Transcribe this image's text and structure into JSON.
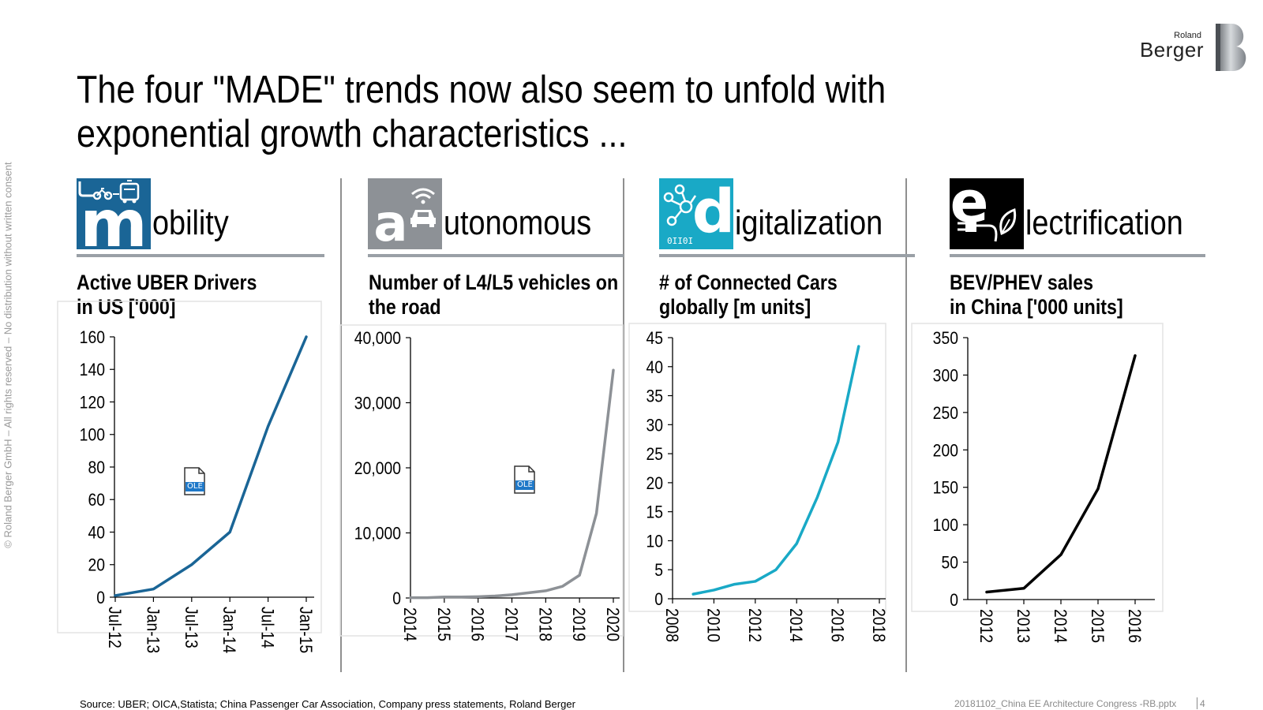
{
  "side_copyright": "© Roland Berger GmbH – All rights reserved – No distribution without written consent",
  "logo": {
    "small": "Roland",
    "big": "Berger"
  },
  "title": "The four \"MADE\" trends now also seem to unfold with exponential growth characteristics ...",
  "colors": {
    "mobility": "#1a6596",
    "autonomous": "#8d9196",
    "digitalization": "#19a9c6",
    "electrification": "#000000"
  },
  "trends": [
    {
      "letter": "m",
      "word": "obility",
      "icon": "bike-bus-icon"
    },
    {
      "letter": "a",
      "word": "utonomous",
      "icon": "wifi-car-icon"
    },
    {
      "letter": "d",
      "word": "igitalization",
      "icon": "circuit-binary-icon",
      "icon_text": "0II0I"
    },
    {
      "letter": "e",
      "word": "lectrification",
      "icon": "plug-leaf-icon"
    }
  ],
  "ole_label": "OLE",
  "chart_data": [
    {
      "type": "line",
      "title": "Active UBER Drivers in US ['000]",
      "title_lines": [
        "Active UBER Drivers",
        "in US ['000]"
      ],
      "color": "#1a6596",
      "categories": [
        "Jul-12",
        "Jan-13",
        "Jul-13",
        "Jan-14",
        "Jul-14",
        "Jan-15"
      ],
      "values": [
        1,
        5,
        20,
        40,
        105,
        160
      ],
      "ylim": [
        0,
        160
      ],
      "yticks": [
        0,
        20,
        40,
        60,
        80,
        100,
        120,
        140,
        160
      ],
      "ytick_labels": [
        "0",
        "20",
        "40",
        "60",
        "80",
        "100",
        "120",
        "140",
        "160"
      ]
    },
    {
      "type": "line",
      "title": "Number of L4/L5 vehicles on the road",
      "title_lines": [
        "Number of L4/L5 vehicles on",
        "the road"
      ],
      "color": "#8d9196",
      "x": [
        2014,
        2014.5,
        2015,
        2015.5,
        2016,
        2016.5,
        2017,
        2017.5,
        2018,
        2018.5,
        2019,
        2019.5,
        2020
      ],
      "values": [
        50,
        50,
        150,
        150,
        200,
        300,
        500,
        800,
        1100,
        1800,
        3500,
        13000,
        35000
      ],
      "xlim": [
        2014,
        2020
      ],
      "xticks": [
        2014,
        2015,
        2016,
        2017,
        2018,
        2019,
        2020
      ],
      "xtick_labels": [
        "2014",
        "2015",
        "2016",
        "2017",
        "2018",
        "2019",
        "2020"
      ],
      "ylim": [
        0,
        40000
      ],
      "yticks": [
        0,
        10000,
        20000,
        30000,
        40000
      ],
      "ytick_labels": [
        "0",
        "10,000",
        "20,000",
        "30,000",
        "40,000"
      ]
    },
    {
      "type": "line",
      "title": "# of Connected Cars globally [m units]",
      "title_lines": [
        "# of Connected Cars",
        "globally [m units]"
      ],
      "color": "#19a9c6",
      "x": [
        2009,
        2010,
        2011,
        2012,
        2013,
        2014,
        2015,
        2016,
        2017
      ],
      "values": [
        0.8,
        1.5,
        2.5,
        3.0,
        5.0,
        9.5,
        17.5,
        27.0,
        43.5
      ],
      "xlim": [
        2008,
        2018
      ],
      "xticks": [
        2008,
        2010,
        2012,
        2014,
        2016,
        2018
      ],
      "xtick_labels": [
        "2008",
        "2010",
        "2012",
        "2014",
        "2016",
        "2018"
      ],
      "ylim": [
        0,
        45
      ],
      "yticks": [
        0,
        5,
        10,
        15,
        20,
        25,
        30,
        35,
        40,
        45
      ],
      "ytick_labels": [
        "0",
        "5",
        "10",
        "15",
        "20",
        "25",
        "30",
        "35",
        "40",
        "45"
      ]
    },
    {
      "type": "line",
      "title": "BEV/PHEV sales in China ['000 units]",
      "title_lines": [
        "BEV/PHEV sales",
        "in China ['000 units]"
      ],
      "color": "#000000",
      "categories": [
        "2012",
        "2013",
        "2014",
        "2015",
        "2016"
      ],
      "values": [
        10,
        15,
        60,
        148,
        326
      ],
      "ylim": [
        0,
        350
      ],
      "yticks": [
        0,
        50,
        100,
        150,
        200,
        250,
        300,
        350
      ],
      "ytick_labels": [
        "0",
        "50",
        "100",
        "150",
        "200",
        "250",
        "300",
        "350"
      ]
    }
  ],
  "footer": {
    "source": "Source: UBER; OICA,Statista; China Passenger Car Association, Company press statements, Roland Berger",
    "file": "20181102_China EE Architecture Congress -RB.pptx",
    "page": "4"
  }
}
